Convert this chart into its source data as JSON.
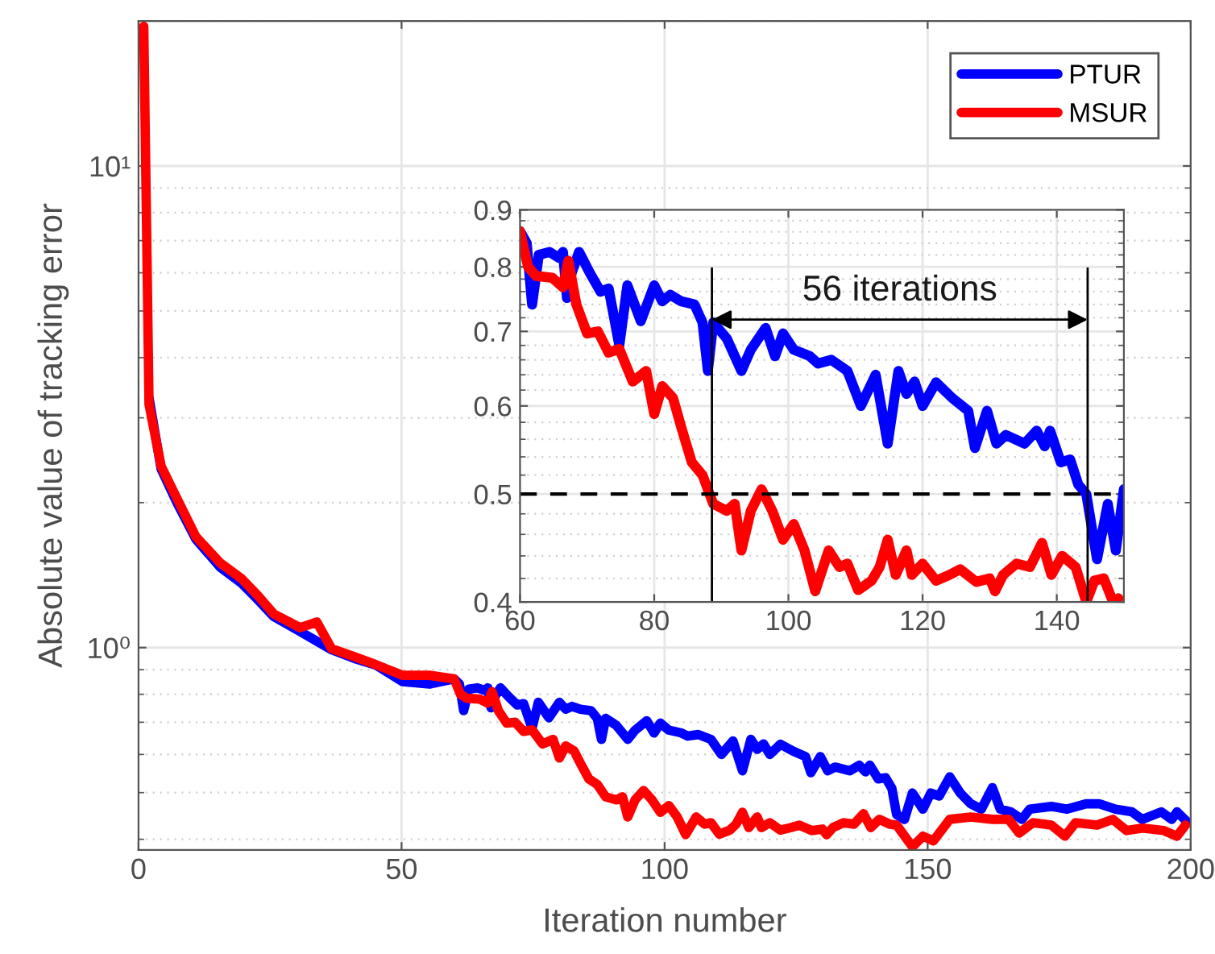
{
  "chart_data": [
    {
      "type": "line",
      "xlabel": "Iteration number",
      "ylabel": "Absolute value of tracking error",
      "log": "y",
      "grid": true,
      "legend": "top right",
      "xlim": [
        0,
        200
      ],
      "xticks": [
        0,
        50,
        100,
        150,
        200
      ],
      "ylim": [
        0.38,
        20
      ],
      "yticks": [
        {
          "value": 1,
          "label": "10⁰"
        },
        {
          "value": 10,
          "label": "10¹"
        }
      ],
      "series": [
        {
          "name": "PTUR",
          "color": "#0000ff",
          "x": [
            2,
            4.3,
            7.3,
            10.9,
            15.5,
            19.6,
            22.6,
            25.7,
            30.7,
            36.7,
            41,
            45.1,
            50.2,
            55.3,
            60,
            61,
            61.8,
            62.8,
            64.4,
            65.8,
            66.4,
            67,
            67.7,
            68.8,
            70.4,
            72,
            73.2,
            74.8,
            76,
            78,
            80,
            81.2,
            82.4,
            84,
            86,
            87.2,
            88,
            88.8,
            90.8,
            93,
            94.4,
            96.6,
            98,
            99.2,
            100.8,
            103.2,
            104.4,
            106.4,
            108.8,
            110.8,
            113,
            114.8,
            116.4,
            117.6,
            118.8,
            120,
            122,
            124.4,
            126.8,
            127.8,
            129.6,
            131,
            132.4,
            135.2,
            137,
            138.2,
            139,
            140.6,
            142,
            143.2,
            144.1,
            145.6,
            147.1,
            149.1,
            150.6,
            152.2,
            154.2,
            156.2,
            158.2,
            160.2,
            162.3,
            163.8,
            165.8,
            167.9,
            169.4,
            173.5,
            176.5,
            180.1,
            182.6,
            185.7,
            188.8,
            190.8,
            194.4,
            196.4,
            197.4,
            199.5
          ],
          "values": [
            3.3,
            2.35,
            2.0,
            1.68,
            1.47,
            1.36,
            1.26,
            1.16,
            1.08,
            0.99,
            0.95,
            0.92,
            0.85,
            0.84,
            0.861,
            0.84,
            0.74,
            0.82,
            0.825,
            0.815,
            0.825,
            0.75,
            0.79,
            0.825,
            0.79,
            0.76,
            0.765,
            0.68,
            0.77,
            0.715,
            0.77,
            0.745,
            0.755,
            0.745,
            0.74,
            0.713,
            0.645,
            0.713,
            0.69,
            0.645,
            0.674,
            0.705,
            0.665,
            0.697,
            0.674,
            0.665,
            0.655,
            0.66,
            0.645,
            0.6,
            0.64,
            0.555,
            0.645,
            0.615,
            0.631,
            0.6,
            0.63,
            0.61,
            0.594,
            0.55,
            0.594,
            0.555,
            0.565,
            0.555,
            0.57,
            0.552,
            0.57,
            0.534,
            0.537,
            0.51,
            0.45,
            0.44,
            0.499,
            0.462,
            0.499,
            0.492,
            0.539,
            0.499,
            0.474,
            0.462,
            0.512,
            0.462,
            0.456,
            0.44,
            0.462,
            0.468,
            0.462,
            0.474,
            0.474,
            0.462,
            0.456,
            0.44,
            0.456,
            0.44,
            0.456,
            0.433
          ]
        },
        {
          "name": "MSUR",
          "color": "#ff0000",
          "x": [
            1,
            2,
            4.3,
            7.3,
            10.9,
            15.5,
            19.6,
            22.6,
            25.7,
            30.7,
            33.9,
            36.7,
            41,
            45.1,
            50.2,
            55.3,
            60,
            61.2,
            62.4,
            64.8,
            66.4,
            67.2,
            68.4,
            70,
            71.6,
            73.2,
            74.8,
            76.8,
            78.8,
            80,
            81.2,
            82.8,
            84,
            85.6,
            87.2,
            88.8,
            90.8,
            92,
            93,
            94.4,
            96,
            97.6,
            99.2,
            100.8,
            102.4,
            104,
            106,
            107.6,
            108.8,
            110.4,
            112.4,
            113.6,
            114.8,
            116,
            117.6,
            118.4,
            120,
            122,
            124,
            125.6,
            128,
            130,
            130.8,
            132,
            134,
            136,
            137.8,
            139.2,
            140.8,
            142.8,
            144.1,
            147.1,
            149.1,
            151.1,
            154.2,
            158.2,
            162.3,
            165.4,
            167.4,
            170,
            173.5,
            176.1,
            178.1,
            182.2,
            185.2,
            187.8,
            190.8,
            194.9,
            197.4,
            199
          ],
          "values": [
            19.5,
            3.2,
            2.38,
            2.04,
            1.7,
            1.5,
            1.39,
            1.285,
            1.175,
            1.1,
            1.13,
            0.995,
            0.958,
            0.922,
            0.876,
            0.876,
            0.861,
            0.8,
            0.785,
            0.782,
            0.767,
            0.81,
            0.74,
            0.697,
            0.7,
            0.67,
            0.675,
            0.631,
            0.645,
            0.59,
            0.625,
            0.61,
            0.575,
            0.534,
            0.52,
            0.49,
            0.483,
            0.49,
            0.445,
            0.483,
            0.505,
            0.483,
            0.455,
            0.47,
            0.445,
            0.409,
            0.445,
            0.43,
            0.433,
            0.41,
            0.418,
            0.43,
            0.455,
            0.423,
            0.445,
            0.423,
            0.433,
            0.418,
            0.423,
            0.428,
            0.417,
            0.42,
            0.409,
            0.423,
            0.433,
            0.43,
            0.452,
            0.423,
            0.44,
            0.43,
            0.428,
            0.386,
            0.406,
            0.397,
            0.44,
            0.445,
            0.44,
            0.44,
            0.412,
            0.433,
            0.428,
            0.406,
            0.433,
            0.428,
            0.44,
            0.417,
            0.422,
            0.417,
            0.406,
            0.428
          ]
        }
      ]
    },
    {
      "type": "line",
      "log": "y",
      "grid": true,
      "xlim": [
        60,
        150
      ],
      "xticks": [
        60,
        80,
        100,
        120,
        140
      ],
      "ylim": [
        0.4,
        0.9
      ],
      "yticks": [
        0.4,
        0.5,
        0.6,
        0.7,
        0.8,
        0.9
      ],
      "annotations": [
        "56 iterations"
      ],
      "ref_lines": [
        {
          "axis": "y",
          "value": 0.5,
          "color": "#000000",
          "line_style": "dashed"
        },
        {
          "axis": "x",
          "value": 88.6,
          "color": "#000000",
          "line_style": "solid"
        },
        {
          "axis": "x",
          "value": 144.6,
          "color": "#000000",
          "line_style": "solid"
        }
      ],
      "series": [
        {
          "color": "#0000ff",
          "x": [
            60,
            61,
            61.8,
            62.8,
            64.4,
            65.8,
            66.4,
            67,
            67.7,
            68.8,
            70.4,
            72,
            73.2,
            74.8,
            76,
            78,
            80,
            81.2,
            82.4,
            84,
            86,
            87.2,
            88,
            88.8,
            90.8,
            93,
            94.4,
            96.6,
            98,
            99.2,
            100.8,
            103.2,
            104.4,
            106.4,
            108.8,
            110.8,
            113,
            114.8,
            116.4,
            117.6,
            118.8,
            120,
            122,
            124.4,
            126.8,
            127.8,
            129.6,
            131,
            132.4,
            135.2,
            137,
            138.2,
            139,
            140.6,
            142,
            143.2,
            144.4,
            146,
            147.6,
            148.8,
            150
          ],
          "values": [
            0.861,
            0.84,
            0.74,
            0.82,
            0.825,
            0.815,
            0.825,
            0.75,
            0.79,
            0.825,
            0.79,
            0.76,
            0.765,
            0.68,
            0.77,
            0.715,
            0.77,
            0.745,
            0.755,
            0.745,
            0.74,
            0.713,
            0.645,
            0.713,
            0.69,
            0.645,
            0.674,
            0.705,
            0.665,
            0.697,
            0.674,
            0.665,
            0.655,
            0.66,
            0.645,
            0.6,
            0.64,
            0.555,
            0.645,
            0.615,
            0.631,
            0.6,
            0.63,
            0.61,
            0.594,
            0.55,
            0.594,
            0.555,
            0.565,
            0.555,
            0.57,
            0.552,
            0.57,
            0.534,
            0.537,
            0.51,
            0.5,
            0.437,
            0.49,
            0.445,
            0.505
          ]
        },
        {
          "color": "#ff0000",
          "x": [
            60,
            61.2,
            62.4,
            64.8,
            66.4,
            67.2,
            68.4,
            70,
            71.6,
            73.2,
            74.8,
            76.8,
            78.8,
            80,
            81.2,
            82.8,
            84,
            85.6,
            87.2,
            88.8,
            90.8,
            92,
            93,
            94.4,
            96,
            97.6,
            99.2,
            100.8,
            102.4,
            104,
            106,
            107.6,
            108.8,
            110.4,
            112.4,
            113.6,
            114.8,
            116,
            117.6,
            118.4,
            120,
            122,
            124,
            125.6,
            128,
            130,
            130.8,
            132,
            134,
            136,
            137.8,
            139.2,
            140.8,
            142.8,
            144.4,
            145.6,
            147,
            148.4,
            149.2
          ],
          "values": [
            0.861,
            0.8,
            0.785,
            0.782,
            0.767,
            0.81,
            0.74,
            0.697,
            0.7,
            0.67,
            0.675,
            0.631,
            0.645,
            0.59,
            0.625,
            0.61,
            0.575,
            0.534,
            0.52,
            0.49,
            0.483,
            0.49,
            0.445,
            0.483,
            0.505,
            0.483,
            0.455,
            0.47,
            0.445,
            0.409,
            0.445,
            0.43,
            0.433,
            0.41,
            0.418,
            0.43,
            0.455,
            0.423,
            0.445,
            0.423,
            0.433,
            0.418,
            0.423,
            0.428,
            0.417,
            0.42,
            0.409,
            0.423,
            0.433,
            0.43,
            0.452,
            0.423,
            0.44,
            0.43,
            0.4,
            0.418,
            0.42,
            0.4,
            0.403
          ]
        }
      ]
    }
  ]
}
